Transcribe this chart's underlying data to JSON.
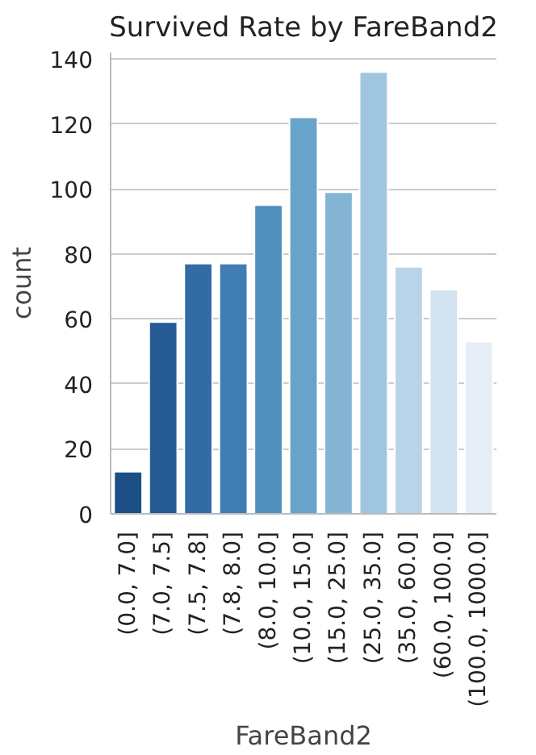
{
  "chart_data": {
    "type": "bar",
    "title": "Survived Rate by FareBand2",
    "xlabel": "FareBand2",
    "ylabel": "count",
    "categories": [
      "(0.0, 7.0]",
      "(7.0, 7.5]",
      "(7.5, 7.8]",
      "(7.8, 8.0]",
      "(8.0, 10.0]",
      "(10.0, 15.0]",
      "(15.0, 25.0]",
      "(25.0, 35.0]",
      "(35.0, 60.0]",
      "(60.0, 100.0]",
      "(100.0, 1000.0]"
    ],
    "values": [
      13,
      59,
      77,
      77,
      95,
      122,
      99,
      136,
      76,
      69,
      53
    ],
    "colors": [
      "#1c4e87",
      "#265b96",
      "#336ca5",
      "#3f7db2",
      "#5090bf",
      "#68a3ca",
      "#84b4d4",
      "#a0c5df",
      "#b9d4e8",
      "#d2e2f0",
      "#e5eef7"
    ],
    "ylim": [
      0,
      142
    ],
    "yticks": [
      0,
      20,
      40,
      60,
      80,
      100,
      120,
      140
    ],
    "grid": "y"
  }
}
